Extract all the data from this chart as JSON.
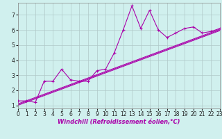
{
  "xlabel": "Windchill (Refroidissement éolien,°C)",
  "xlim": [
    0,
    23
  ],
  "ylim": [
    0.8,
    7.8
  ],
  "xticks": [
    0,
    1,
    2,
    3,
    4,
    5,
    6,
    7,
    8,
    9,
    10,
    11,
    12,
    13,
    14,
    15,
    16,
    17,
    18,
    19,
    20,
    21,
    22,
    23
  ],
  "yticks": [
    1,
    2,
    3,
    4,
    5,
    6,
    7
  ],
  "bg_color": "#d0f0ee",
  "line_color": "#aa00aa",
  "grid_color": "#b0c8c8",
  "line1_x": [
    0,
    1,
    2,
    3,
    4,
    5,
    6,
    7,
    8,
    9,
    10,
    11,
    12,
    13,
    14,
    15,
    16,
    17,
    18,
    19,
    20,
    21,
    22,
    23
  ],
  "line1_y": [
    1.3,
    1.3,
    1.2,
    2.6,
    2.6,
    3.4,
    2.7,
    2.6,
    2.6,
    3.3,
    3.4,
    4.5,
    6.0,
    7.6,
    6.1,
    7.3,
    6.0,
    5.5,
    5.8,
    6.1,
    6.2,
    5.8,
    5.9,
    6.1
  ],
  "line2_x": [
    0,
    23
  ],
  "line2_y": [
    1.1,
    6.05
  ],
  "line3_x": [
    0,
    23
  ],
  "line3_y": [
    1.0,
    5.95
  ],
  "line4_x": [
    0,
    23
  ],
  "line4_y": [
    1.05,
    6.0
  ],
  "xlabel_color": "#aa00aa",
  "xlabel_fontsize": 6,
  "tick_fontsize": 5.5
}
